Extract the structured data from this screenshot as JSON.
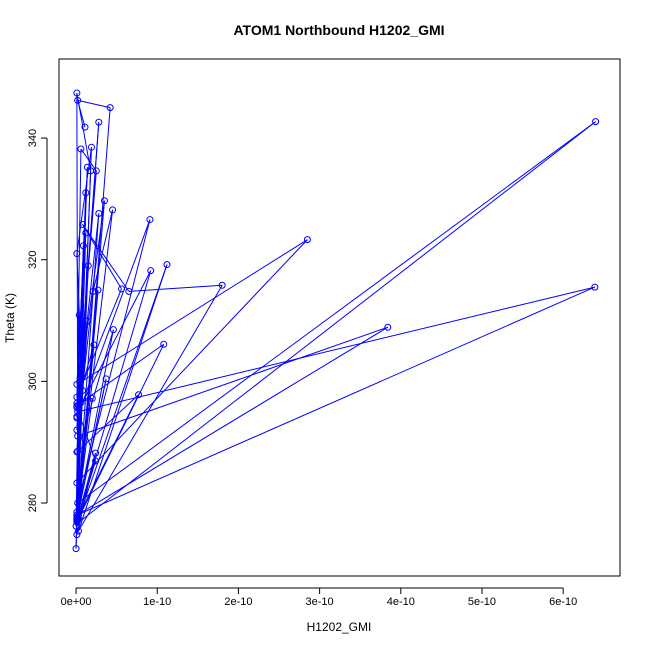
{
  "chart_data": {
    "type": "line",
    "title": "ATOM1 Northbound H1202_GMI",
    "xlabel": "H1202_GMI",
    "ylabel": "Theta (K)",
    "xlim": [
      -2.1e-11,
      6.7e-10
    ],
    "ylim": [
      268,
      353
    ],
    "x_ticks": [
      0,
      1e-10,
      2e-10,
      3e-10,
      4e-10,
      5e-10,
      6e-10
    ],
    "x_tick_labels": [
      "0e+00",
      "1e-10",
      "2e-10",
      "3e-10",
      "4e-10",
      "5e-10",
      "6e-10"
    ],
    "y_ticks": [
      280,
      300,
      320,
      340
    ],
    "y_tick_labels": [
      "280",
      "300",
      "320",
      "340"
    ],
    "grid": false,
    "series_color": "#0000ff",
    "series": [
      {
        "x": [
          1.1e-11,
          2e-12,
          4.2e-11,
          3e-12,
          6.4e-10,
          2e-12,
          9.1e-11,
          1e-12,
          2.8e-11,
          3e-12,
          1.4e-11,
          1e-12,
          5.6e-11,
          8e-12,
          6.5e-11,
          1.8e-10,
          3e-12,
          1.12e-10,
          3e-12,
          2.7e-11,
          1e-12,
          4.5e-11,
          2.1e-11,
          6e-12,
          1.08e-10,
          2e-12,
          2.2e-11,
          1e-12,
          2e-11,
          1e-12,
          4.6e-11,
          2e-12,
          7.7e-11,
          1e-12,
          2.8e-11,
          1e-12,
          6e-12,
          2.5e-11,
          1e-12,
          2.4e-11,
          1e-12,
          9.2e-11,
          2e-12,
          6.39e-10,
          1e-12,
          3.84e-10,
          2e-12,
          1e-12,
          1.8e-11,
          1e-12,
          3.7e-11,
          1e-12,
          1.2e-11,
          1e-12,
          2.85e-10,
          1e-12,
          1.4e-11,
          1e-12,
          9e-12,
          0,
          1.2e-11,
          1e-12,
          3.5e-11,
          2e-12,
          1.9e-11,
          1e-12,
          8e-12,
          0,
          4e-12,
          1e-12,
          2.4e-11,
          1e-12,
          1.5e-11,
          1e-12
        ],
        "y": [
          341.8,
          346.2,
          345.0,
          276.8,
          342.7,
          280.0,
          326.6,
          294.0,
          342.6,
          296.0,
          335.2,
          297.4,
          315.2,
          325.8,
          314.8,
          315.8,
          275.4,
          319.2,
          277.5,
          315.0,
          278.5,
          328.2,
          314.8,
          296.5,
          306.1,
          277.2,
          306.0,
          296.4,
          297.2,
          278.0,
          308.5,
          288.5,
          297.8,
          277.3,
          327.6,
          294.2,
          338.2,
          334.6,
          295.7,
          286.9,
          276.9,
          318.2,
          295.0,
          315.5,
          278.0,
          308.9,
          291.0,
          347.4,
          334.6,
          277.5,
          300.4,
          277.2,
          324.4,
          299.5,
          323.3,
          283.3,
          309.9,
          292.0,
          322.3,
          272.5,
          331.0,
          296.0,
          329.7,
          277.7,
          338.5,
          321.0,
          298.5,
          276.2,
          310.9,
          274.8,
          288.2,
          277.0,
          319.0,
          288.4
        ]
      }
    ]
  }
}
